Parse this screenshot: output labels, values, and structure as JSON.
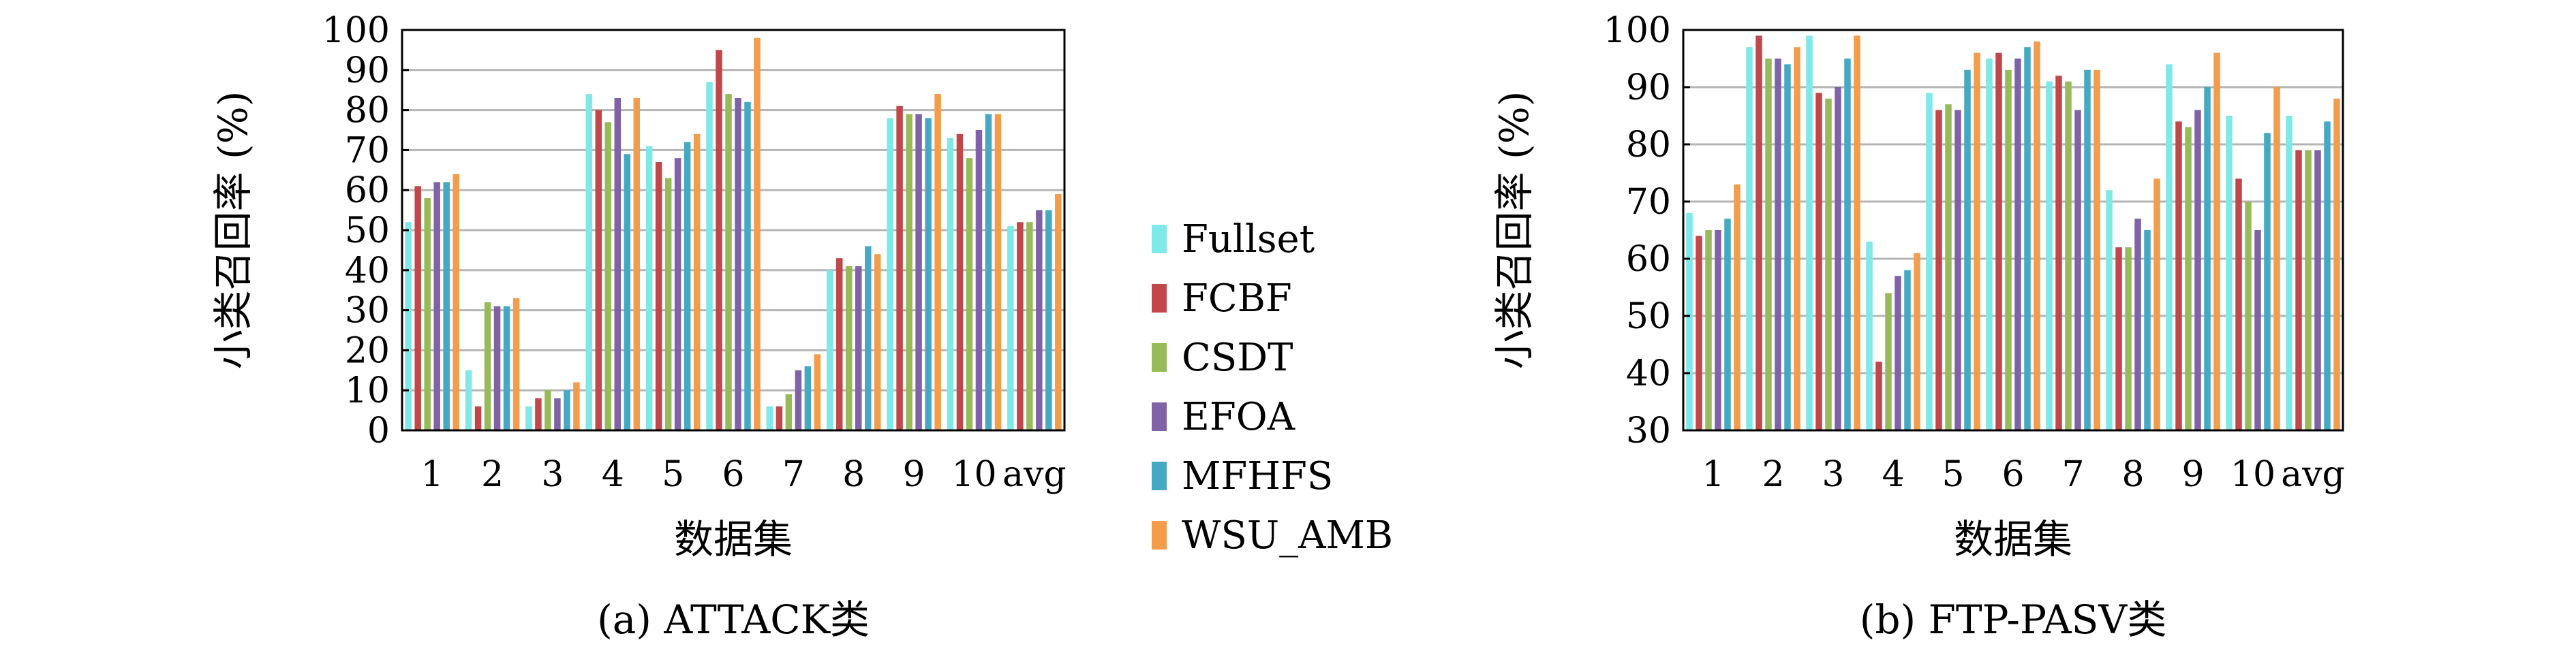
{
  "series_colors": {
    "Fullset": "#7fe8e8",
    "FCBF": "#c0484a",
    "CSDT": "#98bb59",
    "EFOA": "#7f63a6",
    "MFHFS": "#45a9c4",
    "WSU_AMB": "#f39c4a"
  },
  "legend": [
    "Fullset",
    "FCBF",
    "CSDT",
    "EFOA",
    "MFHFS",
    "WSU_AMB"
  ],
  "chart_data": [
    {
      "type": "bar",
      "caption": "(a) ATTACK类",
      "xlabel": "数据集",
      "ylabel": "小类召回率 (%)",
      "categories": [
        "1",
        "2",
        "3",
        "4",
        "5",
        "6",
        "7",
        "8",
        "9",
        "10",
        "avg"
      ],
      "ylim": [
        0,
        100
      ],
      "yticks": [
        0,
        10,
        20,
        30,
        40,
        50,
        60,
        70,
        80,
        90,
        100
      ],
      "grid": true,
      "series": [
        {
          "name": "Fullset",
          "values": [
            52,
            15,
            6,
            84,
            71,
            87,
            6,
            40,
            78,
            73,
            51
          ]
        },
        {
          "name": "FCBF",
          "values": [
            61,
            6,
            8,
            80,
            67,
            95,
            6,
            43,
            81,
            74,
            52
          ]
        },
        {
          "name": "CSDT",
          "values": [
            58,
            32,
            10,
            77,
            63,
            84,
            9,
            41,
            79,
            68,
            52
          ]
        },
        {
          "name": "EFOA",
          "values": [
            62,
            31,
            8,
            83,
            68,
            83,
            15,
            41,
            79,
            75,
            55
          ]
        },
        {
          "name": "MFHFS",
          "values": [
            62,
            31,
            10,
            69,
            72,
            82,
            16,
            46,
            78,
            79,
            55
          ]
        },
        {
          "name": "WSU_AMB",
          "values": [
            64,
            33,
            12,
            83,
            74,
            98,
            19,
            44,
            84,
            79,
            59
          ]
        }
      ]
    },
    {
      "type": "bar",
      "caption": "(b) FTP-PASV类",
      "xlabel": "数据集",
      "ylabel": "小类召回率 (%)",
      "categories": [
        "1",
        "2",
        "3",
        "4",
        "5",
        "6",
        "7",
        "8",
        "9",
        "10",
        "avg"
      ],
      "ylim": [
        30,
        100
      ],
      "yticks": [
        30,
        40,
        50,
        60,
        70,
        80,
        90,
        100
      ],
      "grid": true,
      "series": [
        {
          "name": "Fullset",
          "values": [
            68,
            97,
            99,
            63,
            89,
            95,
            91,
            72,
            94,
            85,
            85
          ]
        },
        {
          "name": "FCBF",
          "values": [
            64,
            99,
            89,
            42,
            86,
            96,
            92,
            62,
            84,
            74,
            79
          ]
        },
        {
          "name": "CSDT",
          "values": [
            65,
            95,
            88,
            54,
            87,
            93,
            91,
            62,
            83,
            70,
            79
          ]
        },
        {
          "name": "EFOA",
          "values": [
            65,
            95,
            90,
            57,
            86,
            95,
            86,
            67,
            86,
            65,
            79
          ]
        },
        {
          "name": "MFHFS",
          "values": [
            67,
            94,
            95,
            58,
            93,
            97,
            93,
            65,
            90,
            82,
            84
          ]
        },
        {
          "name": "WSU_AMB",
          "values": [
            73,
            97,
            99,
            61,
            96,
            98,
            93,
            74,
            96,
            90,
            88
          ]
        }
      ]
    }
  ]
}
